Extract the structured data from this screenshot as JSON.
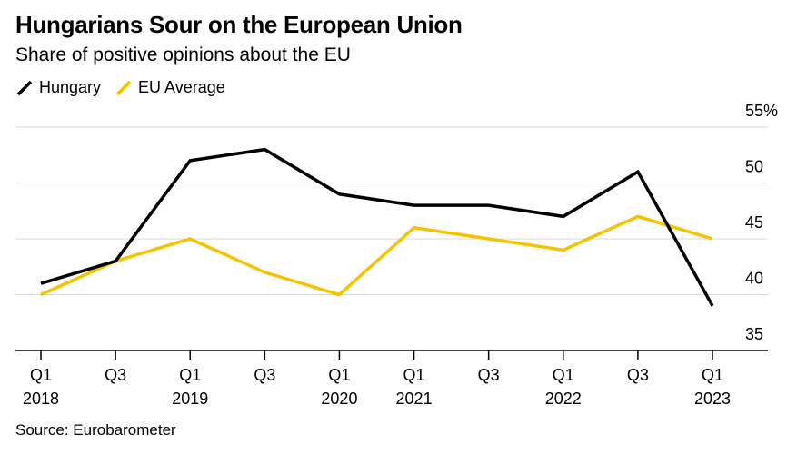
{
  "title": "Hungarians Sour on the European Union",
  "subtitle": "Share of positive opinions about the EU",
  "source": "Source: Eurobarometer",
  "colors": {
    "hungary": "#000000",
    "eu_average": "#f6c300",
    "grid": "#d9d9d9",
    "axis": "#000000"
  },
  "chart_data": {
    "type": "line",
    "title": "Hungarians Sour on the European Union",
    "subtitle": "Share of positive opinions about the EU",
    "xlabel": "",
    "ylabel": "",
    "ylim": [
      34,
      55
    ],
    "y_ticks": [
      {
        "value": 55,
        "label": "55%"
      },
      {
        "value": 50,
        "label": "50"
      },
      {
        "value": 45,
        "label": "45"
      },
      {
        "value": 40,
        "label": "40"
      },
      {
        "value": 35,
        "label": "35"
      }
    ],
    "categories": [
      "Q1 2018",
      "Q3 2018",
      "Q1 2019",
      "Q3 2019",
      "Q1 2020",
      "Q1 2021",
      "Q3 2021",
      "Q1 2022",
      "Q3 2022",
      "Q1 2023"
    ],
    "x_ticks": [
      {
        "top": "Q1",
        "bottom": "2018"
      },
      {
        "top": "Q3",
        "bottom": ""
      },
      {
        "top": "Q1",
        "bottom": "2019"
      },
      {
        "top": "Q3",
        "bottom": ""
      },
      {
        "top": "Q1",
        "bottom": "2020"
      },
      {
        "top": "Q1",
        "bottom": "2021"
      },
      {
        "top": "Q3",
        "bottom": ""
      },
      {
        "top": "Q1",
        "bottom": "2022"
      },
      {
        "top": "Q3",
        "bottom": ""
      },
      {
        "top": "Q1",
        "bottom": "2023"
      }
    ],
    "grid": true,
    "legend_position": "top-left",
    "series": [
      {
        "name": "Hungary",
        "key": "hungary",
        "values": [
          41,
          43,
          52,
          53,
          49,
          48,
          48,
          47,
          51,
          39
        ]
      },
      {
        "name": "EU Average",
        "key": "eu_average",
        "values": [
          40,
          43,
          45,
          42,
          40,
          46,
          45,
          44,
          47,
          45
        ]
      }
    ]
  }
}
